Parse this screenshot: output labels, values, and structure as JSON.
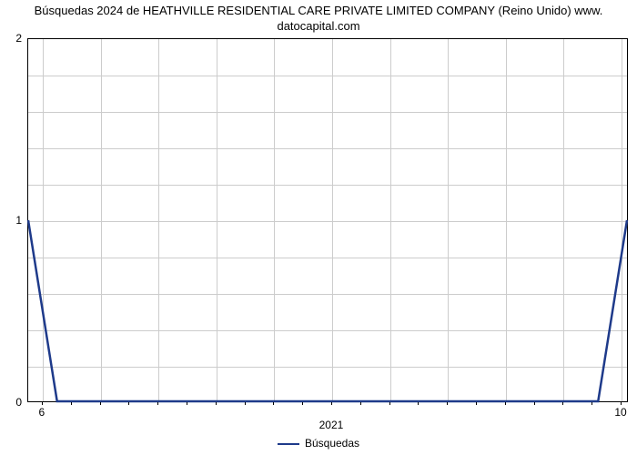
{
  "chart": {
    "type": "line",
    "title_line1": "Búsquedas 2024 de HEATHVILLE RESIDENTIAL CARE PRIVATE LIMITED COMPANY (Reino Unido) www.",
    "title_line2": "datocapital.com",
    "title_fontsize": 13,
    "title_color": "#000000",
    "background_color": "#ffffff",
    "border_color": "#000000",
    "grid_color": "#cccccc",
    "series": {
      "label": "Búsquedas",
      "color": "#1e3a8a",
      "line_width": 2.5,
      "x": [
        5.9,
        6.1,
        9.85,
        10.05
      ],
      "y": [
        1.0,
        0.0,
        0.0,
        1.0
      ]
    },
    "y_axis": {
      "min": 0,
      "max": 2,
      "ticks": [
        0,
        1,
        2
      ],
      "grid_subdivisions": 10
    },
    "x_axis": {
      "min": 5.9,
      "max": 10.05,
      "minor_labels": [
        {
          "pos": 6,
          "text": "6"
        },
        {
          "pos": 10,
          "text": "10"
        }
      ],
      "major_labels": [
        {
          "pos": 8.0,
          "text": "2021"
        }
      ],
      "grid_lines": [
        6,
        6.4,
        6.8,
        7.2,
        7.6,
        8.0,
        8.4,
        8.8,
        9.2,
        9.6,
        10.0
      ],
      "tick_marks": [
        6,
        6.2,
        6.4,
        6.6,
        6.8,
        7.0,
        7.2,
        7.4,
        7.6,
        7.8,
        8.0,
        8.2,
        8.4,
        8.6,
        8.8,
        9.0,
        9.2,
        9.4,
        9.6,
        9.8,
        10.0
      ]
    },
    "legend": {
      "label": "Búsquedas",
      "line_color": "#1e3a8a"
    }
  }
}
